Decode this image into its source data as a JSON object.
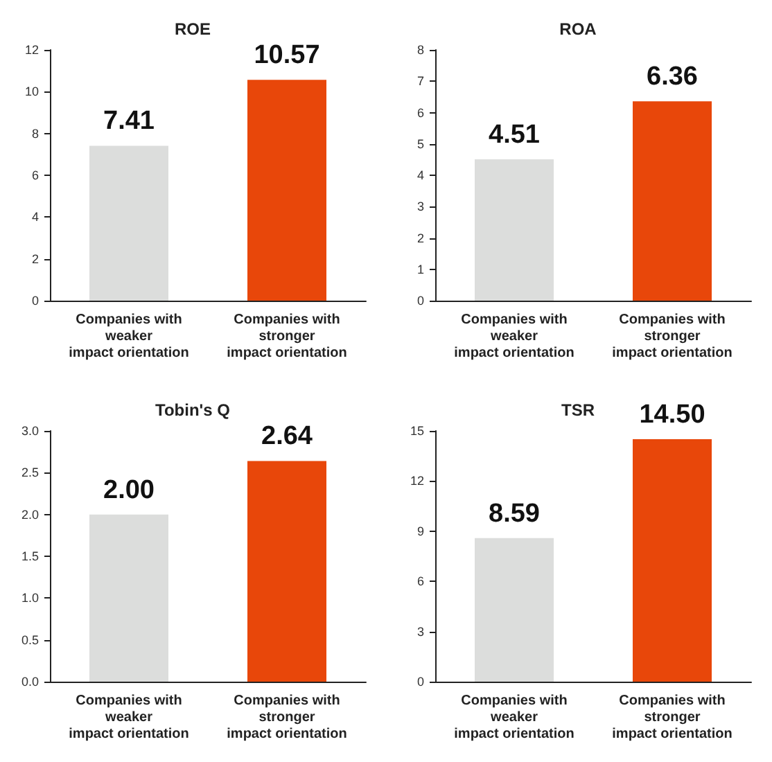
{
  "chart_data": [
    {
      "type": "bar",
      "title": "ROE",
      "categories": [
        "Companies with\nweaker\nimpact orientation",
        "Companies with\nstronger\nimpact orientation"
      ],
      "values": [
        7.41,
        10.57
      ],
      "colors": [
        "#dcdddc",
        "#e8470a"
      ],
      "ylim": [
        0,
        12
      ],
      "yticks": [
        0,
        2,
        4,
        6,
        8,
        10,
        12
      ],
      "data_labels": true,
      "grid": false
    },
    {
      "type": "bar",
      "title": "ROA",
      "categories": [
        "Companies with\nweaker\nimpact orientation",
        "Companies with\nstronger\nimpact orientation"
      ],
      "values": [
        4.51,
        6.36
      ],
      "colors": [
        "#dcdddc",
        "#e8470a"
      ],
      "ylim": [
        0,
        8
      ],
      "yticks": [
        0,
        1,
        2,
        3,
        4,
        5,
        6,
        7,
        8
      ],
      "data_labels": true,
      "grid": false
    },
    {
      "type": "bar",
      "title": "Tobin's Q",
      "categories": [
        "Companies with\nweaker\nimpact orientation",
        "Companies with\nstronger\nimpact orientation"
      ],
      "values": [
        2.0,
        2.64
      ],
      "value_labels": [
        "2.00",
        "2.64"
      ],
      "colors": [
        "#dcdddc",
        "#e8470a"
      ],
      "ylim": [
        0,
        3
      ],
      "yticks": [
        {
          "value": 0,
          "label": "0.0"
        },
        {
          "value": 0.5,
          "label": "0.5"
        },
        {
          "value": 1,
          "label": "1.0"
        },
        {
          "value": 1.5,
          "label": "1.5"
        },
        {
          "value": 2,
          "label": "2.0"
        },
        {
          "value": 2.5,
          "label": "2.5"
        },
        {
          "value": 3,
          "label": "3.0"
        }
      ],
      "grid": false
    },
    {
      "type": "bar",
      "title": "TSR",
      "categories": [
        "Companies with\nweaker\nimpact orientation",
        "Companies with\nstronger\nimpact orientation"
      ],
      "values": [
        8.59,
        14.5
      ],
      "value_labels": [
        "8.59",
        "14.50"
      ],
      "colors": [
        "#dcdddc",
        "#e8470a"
      ],
      "ylim": [
        0,
        15
      ],
      "yticks": [
        0,
        3,
        6,
        9,
        12,
        15
      ],
      "grid": false
    }
  ]
}
